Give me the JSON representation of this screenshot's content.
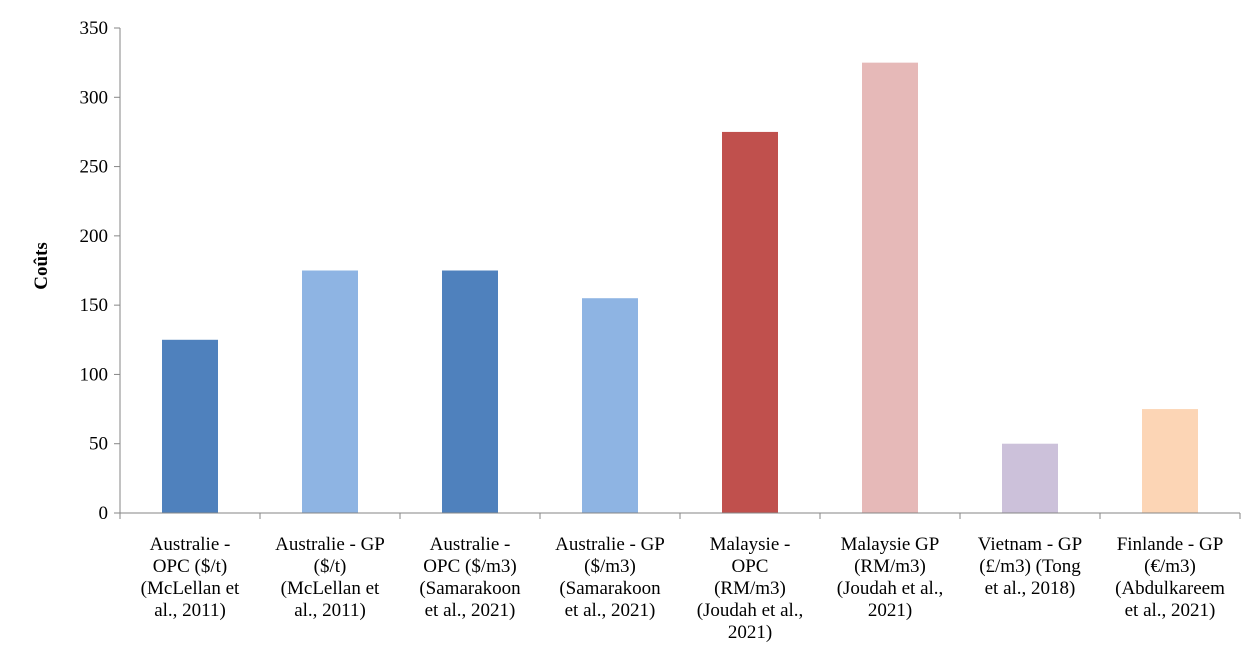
{
  "chart_data": {
    "type": "bar",
    "title": "",
    "xlabel": "",
    "ylabel": "Coûts",
    "ylim": [
      0,
      350
    ],
    "yticks": [
      0,
      50,
      100,
      150,
      200,
      250,
      300,
      350
    ],
    "grid": false,
    "legend": "none",
    "categories": [
      [
        "Australie -",
        "OPC ($/t)",
        "(McLellan et",
        "al., 2011)"
      ],
      [
        "Australie - GP",
        "($/t)",
        "(McLellan et",
        "al., 2011)"
      ],
      [
        "Australie -",
        "OPC ($/m3)",
        "(Samarakoon",
        "et al., 2021)"
      ],
      [
        "Australie - GP",
        "($/m3)",
        "(Samarakoon",
        "et al., 2021)"
      ],
      [
        "Malaysie -",
        "OPC",
        "(RM/m3)",
        "(Joudah et al.,",
        "2021)"
      ],
      [
        "Malaysie GP",
        "(RM/m3)",
        "(Joudah et al.,",
        "2021)"
      ],
      [
        "Vietnam - GP",
        "(£/m3) (Tong",
        "et al., 2018)"
      ],
      [
        "Finlande - GP",
        "(€/m3)",
        "(Abdulkareem",
        "et al., 2021)"
      ]
    ],
    "values": [
      125,
      175,
      175,
      155,
      275,
      325,
      50,
      75
    ],
    "colors": [
      "#4f81bd",
      "#8eb4e3",
      "#4f81bd",
      "#8eb4e3",
      "#c0504d",
      "#e6b9b8",
      "#ccc1da",
      "#fcd5b5"
    ]
  }
}
